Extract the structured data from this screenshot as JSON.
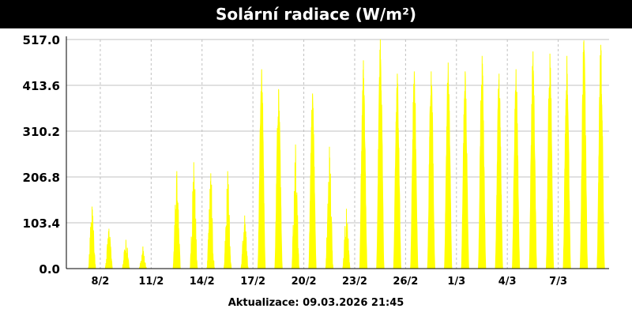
{
  "header": {
    "title": "Solární radiace (W/m²)"
  },
  "footer": {
    "update_label": "Aktualizace: 09.03.2026 21:45"
  },
  "colors": {
    "series": "#ffff00",
    "grid": "#c0c0c0",
    "axis": "#000000"
  },
  "chart_data": {
    "type": "area",
    "title": "Solární radiace (W/m²)",
    "xlabel": "",
    "ylabel": "",
    "x_range": [
      "2026-02-06",
      "2026-03-09"
    ],
    "ylim": [
      0,
      517
    ],
    "yticks": [
      0.0,
      103.4,
      206.8,
      310.2,
      413.6,
      517.0
    ],
    "ytick_labels": [
      "0.0",
      "103.4",
      "206.8",
      "310.2",
      "413.6",
      "517.0"
    ],
    "xticks": [
      "2026-02-08",
      "2026-02-11",
      "2026-02-14",
      "2026-02-17",
      "2026-02-20",
      "2026-02-23",
      "2026-02-26",
      "2026-03-01",
      "2026-03-04",
      "2026-03-07"
    ],
    "xtick_labels": [
      "8/2",
      "11/2",
      "14/2",
      "17/2",
      "20/2",
      "23/2",
      "26/2",
      "1/3",
      "4/3",
      "7/3"
    ],
    "grid": true,
    "legend": "none",
    "series": [
      {
        "name": "",
        "daily_peaks": [
          {
            "date": "2026-02-06",
            "peak": 0
          },
          {
            "date": "2026-02-07",
            "peak": 140
          },
          {
            "date": "2026-02-08",
            "peak": 90
          },
          {
            "date": "2026-02-09",
            "peak": 65
          },
          {
            "date": "2026-02-10",
            "peak": 50
          },
          {
            "date": "2026-02-11",
            "peak": 0
          },
          {
            "date": "2026-02-12",
            "peak": 220
          },
          {
            "date": "2026-02-13",
            "peak": 240
          },
          {
            "date": "2026-02-14",
            "peak": 215
          },
          {
            "date": "2026-02-15",
            "peak": 220
          },
          {
            "date": "2026-02-16",
            "peak": 120
          },
          {
            "date": "2026-02-17",
            "peak": 450
          },
          {
            "date": "2026-02-18",
            "peak": 405
          },
          {
            "date": "2026-02-19",
            "peak": 280
          },
          {
            "date": "2026-02-20",
            "peak": 395
          },
          {
            "date": "2026-02-21",
            "peak": 275
          },
          {
            "date": "2026-02-22",
            "peak": 135
          },
          {
            "date": "2026-02-23",
            "peak": 470
          },
          {
            "date": "2026-02-24",
            "peak": 517
          },
          {
            "date": "2026-02-25",
            "peak": 440
          },
          {
            "date": "2026-02-26",
            "peak": 445
          },
          {
            "date": "2026-02-27",
            "peak": 445
          },
          {
            "date": "2026-02-28",
            "peak": 465
          },
          {
            "date": "2026-03-01",
            "peak": 445
          },
          {
            "date": "2026-03-02",
            "peak": 480
          },
          {
            "date": "2026-03-03",
            "peak": 440
          },
          {
            "date": "2026-03-04",
            "peak": 450
          },
          {
            "date": "2026-03-05",
            "peak": 490
          },
          {
            "date": "2026-03-06",
            "peak": 485
          },
          {
            "date": "2026-03-07",
            "peak": 480
          },
          {
            "date": "2026-03-08",
            "peak": 515
          },
          {
            "date": "2026-03-09",
            "peak": 505
          }
        ]
      }
    ]
  }
}
